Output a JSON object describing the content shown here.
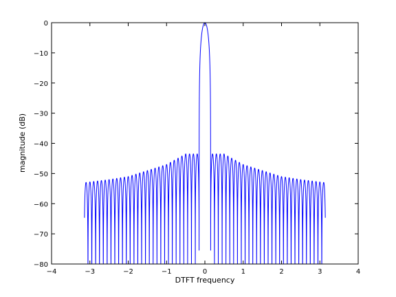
{
  "chart_data": {
    "type": "line",
    "title": "",
    "xlabel": "DTFT frequency",
    "ylabel": "magnitude (dB)",
    "xlim": [
      -4,
      4
    ],
    "ylim": [
      -80,
      0
    ],
    "x_ticks": [
      -4,
      -3,
      -2,
      -1,
      0,
      1,
      2,
      3,
      4
    ],
    "y_ticks": [
      0,
      -10,
      -20,
      -30,
      -40,
      -50,
      -60,
      -70,
      -80
    ],
    "x_tick_labels": [
      "−4",
      "−3",
      "−2",
      "−1",
      "0",
      "1",
      "2",
      "3",
      "4"
    ],
    "y_tick_labels": [
      "0",
      "−10",
      "−20",
      "−30",
      "−40",
      "−50",
      "−60",
      "−70",
      "−80"
    ],
    "grid": false,
    "legend": "none",
    "line_color": "#0000ff",
    "series": [
      {
        "description_points": "Windowed DTFT magnitude response in dB over [-pi, pi]",
        "main_lobe": {
          "center": 0,
          "peak_db": 0,
          "first_null": 0.15
        },
        "sidelobe_envelope": [
          {
            "x": -3.14,
            "db": -53
          },
          {
            "x": -2.5,
            "db": -52
          },
          {
            "x": -2.0,
            "db": -51
          },
          {
            "x": -1.5,
            "db": -49
          },
          {
            "x": -1.0,
            "db": -47
          },
          {
            "x": -0.5,
            "db": -43.5
          },
          {
            "x": 0.5,
            "db": -43.5
          },
          {
            "x": 1.0,
            "db": -47
          },
          {
            "x": 1.5,
            "db": -49
          },
          {
            "x": 2.0,
            "db": -51
          },
          {
            "x": 2.5,
            "db": -52
          },
          {
            "x": 3.14,
            "db": -53
          }
        ],
        "x_range": [
          -3.1416,
          3.1416
        ]
      }
    ]
  }
}
